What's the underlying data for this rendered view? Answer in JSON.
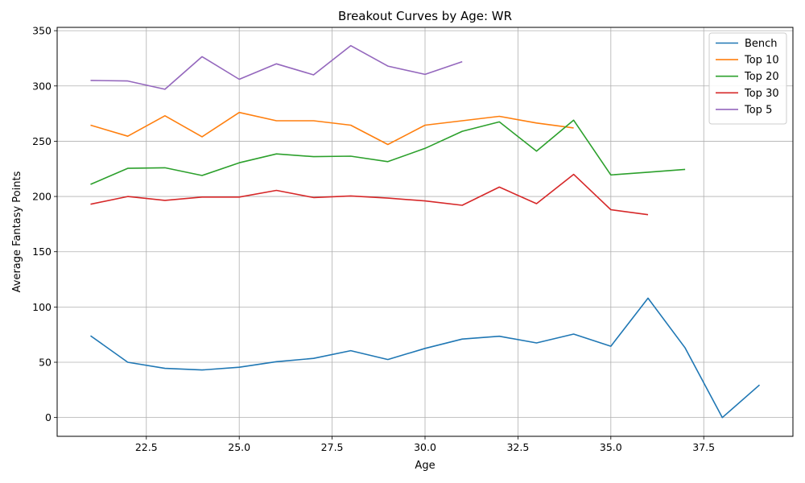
{
  "chart_data": {
    "type": "line",
    "title": "Breakout Curves by Age: WR",
    "xlabel": "Age",
    "ylabel": "Average Fantasy Points",
    "xlim": [
      20.1,
      39.9
    ],
    "ylim": [
      -17,
      353
    ],
    "x_ticks": [
      22.5,
      25.0,
      27.5,
      30.0,
      32.5,
      35.0,
      37.5
    ],
    "x_tick_labels": [
      "22.5",
      "25.0",
      "27.5",
      "30.0",
      "32.5",
      "35.0",
      "37.5"
    ],
    "y_ticks": [
      0,
      50,
      100,
      150,
      200,
      250,
      300,
      350
    ],
    "y_tick_labels": [
      "0",
      "50",
      "100",
      "150",
      "200",
      "250",
      "300",
      "350"
    ],
    "grid": true,
    "legend_position": "top-right",
    "series": [
      {
        "name": "Bench",
        "color": "#1f77b4",
        "x": [
          21,
          22,
          23,
          24,
          25,
          26,
          27,
          28,
          29,
          30,
          31,
          32,
          33,
          34,
          35,
          36,
          37,
          38,
          39
        ],
        "y": [
          74,
          50,
          44.5,
          43,
          45.5,
          50.5,
          53.5,
          60.5,
          52.5,
          62.5,
          71,
          73.5,
          67.5,
          75.5,
          64.5,
          108,
          63,
          0,
          29.5
        ]
      },
      {
        "name": "Top 10",
        "color": "#ff7f0e",
        "x": [
          21,
          22,
          23,
          24,
          25,
          26,
          27,
          28,
          29,
          30,
          31,
          32,
          33,
          34
        ],
        "y": [
          264.5,
          254.5,
          273,
          254,
          276,
          268.5,
          268.5,
          264.5,
          247,
          264.5,
          268.5,
          272.5,
          266.5,
          262
        ]
      },
      {
        "name": "Top 20",
        "color": "#2ca02c",
        "x": [
          21,
          22,
          23,
          24,
          25,
          26,
          27,
          28,
          29,
          30,
          31,
          32,
          33,
          34,
          35,
          36,
          37
        ],
        "y": [
          211,
          225.5,
          226,
          219,
          230.5,
          238.5,
          236,
          236.5,
          231.5,
          243.5,
          259,
          267.5,
          241,
          269,
          219.5,
          222,
          224.5
        ]
      },
      {
        "name": "Top 30",
        "color": "#d62728",
        "x": [
          21,
          22,
          23,
          24,
          25,
          26,
          27,
          28,
          29,
          30,
          31,
          32,
          33,
          34,
          35,
          36
        ],
        "y": [
          193,
          200,
          196.5,
          199.5,
          199.5,
          205.5,
          199,
          200.5,
          198.5,
          196,
          192,
          208.5,
          193.5,
          220,
          188,
          183.5
        ]
      },
      {
        "name": "Top 5",
        "color": "#9467bd",
        "x": [
          21,
          22,
          23,
          24,
          25,
          26,
          27,
          28,
          29,
          30,
          31
        ],
        "y": [
          305,
          304.5,
          297,
          326.5,
          306,
          320,
          310,
          336.5,
          318,
          310.5,
          322
        ]
      }
    ]
  }
}
